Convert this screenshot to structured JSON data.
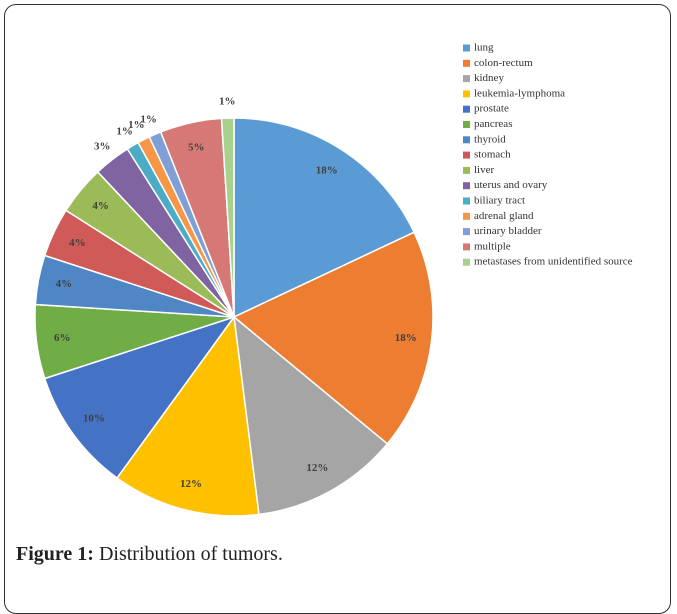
{
  "chart_data": {
    "type": "pie",
    "categories": [
      "lung",
      "colon-rectum",
      "kidney",
      "leukemia-lymphoma",
      "prostate",
      "pancreas",
      "thyroid",
      "stomach",
      "liver",
      "uterus and ovary",
      "biliary tract",
      "adrenal gland",
      "urinary bladder",
      "multiple",
      "metastases from unidentified source"
    ],
    "values": [
      18,
      18,
      12,
      12,
      10,
      6,
      4,
      4,
      4,
      3,
      1,
      1,
      1,
      5,
      1
    ],
    "value_labels": [
      "18%",
      "18%",
      "12%",
      "12%",
      "10%",
      "6%",
      "4%",
      "4%",
      "4%",
      "3%",
      "1%",
      "1%",
      "1%",
      "5%",
      "1%"
    ],
    "colors": [
      "#5b9bd5",
      "#ed7d31",
      "#a5a5a5",
      "#ffc000",
      "#4472c4",
      "#70ad47",
      "#4f86c6",
      "#d05a58",
      "#9bbb59",
      "#8064a2",
      "#4bacc6",
      "#f79646",
      "#7f9fd6",
      "#d67876",
      "#a9d18e"
    ],
    "legend": "right"
  },
  "caption": {
    "label": "Figure 1:",
    "text": "Distribution of tumors."
  }
}
